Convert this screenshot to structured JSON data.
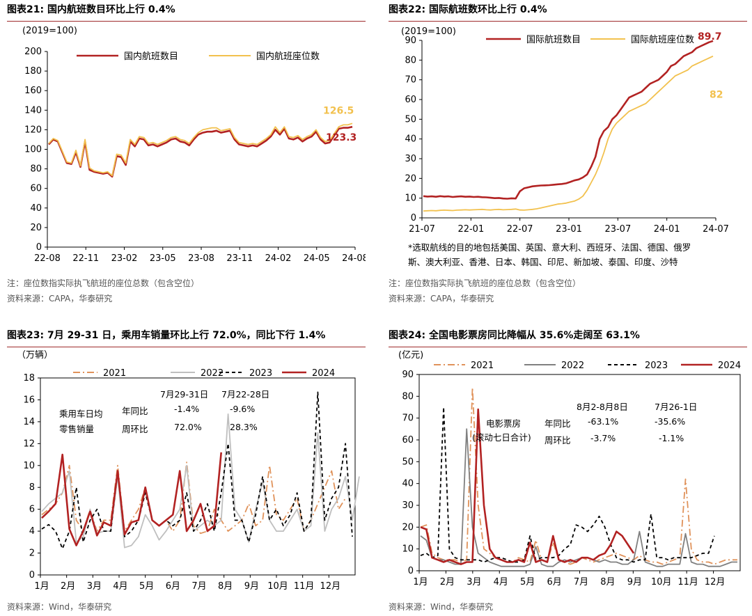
{
  "panels": {
    "p21": {
      "title": "图表21:  国内航班数目环比上行 0.4%",
      "note1": "注：座位数指实际执飞航班的座位总数（包含空位）",
      "note2": "资料来源：CAPA，华泰研究"
    },
    "p22": {
      "title": "图表22:  国际航班数环比上行 0.4%",
      "footnote1": "*选取航线的目的地包括美国、英国、意大利、西班牙、法国、德国、俄罗",
      "footnote2": "斯、澳大利亚、香港、日本、韩国、印尼、新加坡、泰国、印度、沙特",
      "note1": "注：座位数指实际执飞航班的座位总数（包含空位）",
      "note2": "资料来源：CAPA，华泰研究"
    },
    "p23": {
      "title": "图表23:  7月 29-31 日，乘用车销量环比上行 72.0%，同比下行 1.4%",
      "note1": "资料来源：Wind，华泰研究",
      "table": {
        "col1": "7月29-31日",
        "col2": "7月22-28日",
        "label1": "乘用车日均",
        "label2": "零售销量",
        "row1": "年同比",
        "row2": "周环比",
        "v11": "-1.4%",
        "v12": "-9.6%",
        "v21": "72.0%",
        "v22": "28.3%"
      }
    },
    "p24": {
      "title": "图表24:  全国电影票房同比降幅从 35.6%走阔至 63.1%",
      "note1": "资料来源：Wind，华泰研究",
      "table": {
        "col1": "8月2-8月8日",
        "col2": "7月26-1日",
        "label1": "电影票房",
        "label2": "(滚动七日合计)",
        "row1": "年同比",
        "row2": "周环比",
        "v11": "-63.1%",
        "v12": "-35.6%",
        "v21": "-3.7%",
        "v22": "-1.1%"
      }
    }
  },
  "colors": {
    "red": "#b22222",
    "gold": "#f2c14e",
    "orange": "#e0925a",
    "gray": "#bfbfbf",
    "darkgray": "#808080",
    "black": "#000000"
  },
  "chart_data": [
    {
      "id": "c21",
      "type": "line",
      "unit": "(2019=100)",
      "ylim": [
        0,
        200
      ],
      "yticks": [
        0,
        20,
        40,
        60,
        80,
        100,
        120,
        140,
        160,
        180,
        200
      ],
      "xticks": [
        "22-08",
        "22-11",
        "23-02",
        "23-05",
        "23-08",
        "23-11",
        "24-02",
        "24-05",
        "24-08"
      ],
      "end_labels": [
        "126.5",
        "123.3"
      ],
      "series": [
        {
          "name": "国内航班数目",
          "color": "#b22222",
          "values": [
            105,
            110,
            108,
            97,
            86,
            85,
            97,
            82,
            108,
            79,
            77,
            76,
            75,
            76,
            72,
            93,
            92,
            84,
            108,
            103,
            111,
            110,
            104,
            105,
            103,
            105,
            107,
            110,
            111,
            108,
            107,
            104,
            110,
            115,
            117,
            118,
            118,
            119,
            117,
            118,
            119,
            110,
            105,
            104,
            103,
            104,
            103,
            106,
            109,
            113,
            120,
            115,
            121,
            111,
            110,
            112,
            108,
            111,
            113,
            118,
            110,
            106,
            107,
            114,
            121,
            122,
            122,
            123
          ]
        },
        {
          "name": "国内航班座位数",
          "color": "#f2c14e",
          "values": [
            106,
            111,
            109,
            98,
            87,
            86,
            99,
            83,
            110,
            81,
            78,
            77,
            76,
            77,
            73,
            95,
            94,
            86,
            110,
            105,
            113,
            112,
            106,
            107,
            105,
            107,
            109,
            112,
            113,
            110,
            109,
            106,
            112,
            117,
            120,
            121,
            122,
            122,
            119,
            120,
            121,
            112,
            107,
            106,
            105,
            106,
            105,
            108,
            111,
            115,
            123,
            117,
            123,
            113,
            112,
            114,
            110,
            113,
            115,
            120,
            112,
            108,
            109,
            116,
            123,
            125,
            125,
            126.5
          ]
        }
      ]
    },
    {
      "id": "c22",
      "type": "line",
      "unit": "(2019=100)",
      "ylim": [
        0,
        90
      ],
      "yticks": [
        0,
        10,
        20,
        30,
        40,
        50,
        60,
        70,
        80,
        90
      ],
      "xticks": [
        "21-07",
        "22-01",
        "22-07",
        "23-01",
        "23-07",
        "24-01",
        "24-07"
      ],
      "end_labels": [
        "89.7",
        "82"
      ],
      "series": [
        {
          "name": "国际航班数目",
          "color": "#b22222",
          "values": [
            11,
            10.8,
            10.9,
            10.7,
            11,
            10.8,
            10.9,
            10.6,
            10.8,
            10.9,
            10.7,
            10.8,
            10.6,
            10.7,
            10.5,
            10.4,
            10.2,
            10,
            10.1,
            9.8,
            9.7,
            9.9,
            9.8,
            13.5,
            15,
            15.5,
            16,
            16.2,
            16.4,
            16.5,
            16.6,
            16.8,
            17,
            17.2,
            17.5,
            18.2,
            19,
            19.5,
            20.5,
            22,
            26,
            31,
            40,
            44,
            46,
            50,
            52,
            55,
            58,
            61,
            62,
            63,
            64,
            66,
            68,
            69,
            70,
            72,
            74,
            77,
            78,
            80,
            82,
            83,
            84,
            86,
            87,
            88,
            89,
            89.7
          ]
        },
        {
          "name": "国际航班座位数",
          "color": "#f2c14e",
          "values": [
            3.5,
            3.6,
            3.7,
            3.6,
            3.8,
            3.9,
            3.8,
            3.7,
            3.9,
            4,
            4.1,
            4,
            4.1,
            4.2,
            4.3,
            4.1,
            4,
            4.2,
            4.3,
            4.1,
            4.2,
            4.3,
            4.5,
            4,
            3.9,
            4.1,
            4.3,
            4.6,
            5,
            5.5,
            6,
            6.5,
            7,
            7.2,
            7.5,
            8,
            8.5,
            9.5,
            11,
            14,
            18,
            22,
            27,
            33,
            40,
            45,
            48,
            50,
            52,
            54,
            55,
            56,
            57,
            58,
            60,
            62,
            64,
            66,
            68,
            70,
            72,
            73,
            74,
            75,
            77,
            78,
            79,
            80,
            81,
            82
          ]
        }
      ]
    },
    {
      "id": "c23",
      "type": "line",
      "unit": "（万辆）",
      "ylim": [
        0,
        18
      ],
      "yticks": [
        0,
        2,
        4,
        6,
        8,
        10,
        12,
        14,
        16,
        18
      ],
      "xticks": [
        "1月",
        "2月",
        "3月",
        "4月",
        "5月",
        "6月",
        "7月",
        "8月",
        "9月",
        "10月",
        "11月",
        "12月"
      ],
      "series": [
        {
          "name": "2021",
          "color": "#e0925a",
          "dash": "10,4,2,4",
          "values": [
            5.5,
            6,
            6.5,
            7.5,
            10,
            5,
            4,
            6,
            4,
            5,
            5,
            10,
            4,
            5,
            6,
            8,
            5,
            4.5,
            5,
            4,
            5,
            10.3,
            4.5,
            3.8,
            4,
            6,
            5,
            4,
            4.5,
            5,
            6.5,
            4.5,
            5,
            10,
            5.5,
            5,
            6,
            7,
            4,
            5,
            6.5,
            8,
            9.5,
            6,
            7
          ]
        },
        {
          "name": "2022",
          "color": "#bfbfbf",
          "dash": "",
          "values": [
            5.8,
            6.5,
            7,
            7.5,
            9.5,
            3,
            3.5,
            6,
            3.8,
            4,
            4,
            9,
            2.5,
            2.7,
            3.5,
            5.5,
            4.5,
            3.2,
            4,
            5,
            6,
            10,
            4,
            4.5,
            5,
            4.5,
            5,
            14.7,
            6,
            5,
            3,
            6,
            8.5,
            5,
            4,
            4,
            5,
            6,
            4,
            4.5,
            13,
            4,
            6,
            7,
            9,
            5,
            9
          ]
        },
        {
          "name": "2023",
          "color": "#000000",
          "dash": "5,4",
          "values": [
            4.2,
            4.6,
            4,
            2.4,
            4,
            8,
            3,
            5,
            6,
            4,
            4,
            9.5,
            3.5,
            4,
            5,
            7.5,
            5,
            4.5,
            5,
            4.5,
            5,
            7.5,
            4,
            5,
            6.5,
            4,
            7.5,
            12,
            5,
            5,
            3,
            5.5,
            9,
            5,
            6,
            4.5,
            5.5,
            7.5,
            4,
            5,
            16.7,
            5,
            7,
            8,
            12,
            3.5
          ]
        },
        {
          "name": "2024",
          "color": "#b22222",
          "dash": "",
          "values": [
            5.2,
            5.8,
            6.5,
            11,
            4.2,
            2.7,
            4,
            5.8,
            3.6,
            4.8,
            4.5,
            9.5,
            3.7,
            4.8,
            5,
            8,
            5,
            4.5,
            5,
            5.5,
            9.5,
            4,
            5,
            6.5,
            4,
            4.5,
            11.2
          ]
        }
      ]
    },
    {
      "id": "c24",
      "type": "line",
      "unit": "(亿元)",
      "ylim": [
        0,
        90
      ],
      "yticks": [
        0,
        10,
        20,
        30,
        40,
        50,
        60,
        70,
        80,
        90
      ],
      "xticks": [
        "1月",
        "2月",
        "3月",
        "4月",
        "5月",
        "6月",
        "7月",
        "8月",
        "9月",
        "10月",
        "11月",
        "12月"
      ],
      "series": [
        {
          "name": "2021",
          "color": "#e0925a",
          "dash": "10,4,2,4",
          "values": [
            20,
            21,
            8,
            6,
            5,
            5,
            5,
            4,
            5,
            84,
            30,
            10,
            8,
            6,
            5,
            4,
            4,
            6,
            5,
            4,
            14,
            5,
            4,
            13,
            5,
            4,
            3,
            4,
            6,
            5,
            4,
            5,
            6,
            7,
            8,
            7,
            6,
            5,
            7,
            5,
            4,
            4,
            3,
            4,
            5,
            6,
            42,
            10,
            5,
            4,
            4,
            3,
            4,
            5,
            5,
            5
          ]
        },
        {
          "name": "2022",
          "color": "#808080",
          "dash": "",
          "values": [
            16,
            14,
            6,
            5,
            5,
            4,
            3,
            3,
            65,
            20,
            8,
            6,
            4,
            3,
            2,
            2,
            2,
            2,
            2,
            3,
            11,
            3,
            2,
            2,
            4,
            5,
            4,
            5,
            6,
            6,
            5,
            4,
            5,
            4,
            4,
            3,
            3,
            5,
            18,
            4,
            3,
            2,
            2,
            3,
            3,
            3,
            17,
            4,
            3,
            3,
            2,
            2,
            2,
            3,
            4,
            4
          ]
        },
        {
          "name": "2023",
          "color": "#000000",
          "dash": "5,4",
          "values": [
            7,
            8,
            6,
            7,
            75,
            10,
            6,
            5,
            5,
            5,
            5,
            4,
            5,
            6,
            6,
            5,
            4,
            4,
            5,
            16,
            5,
            6,
            6,
            6,
            7,
            10,
            12,
            21,
            20,
            18,
            21,
            25,
            20,
            12,
            6,
            5,
            5,
            4,
            5,
            5,
            26,
            6,
            6,
            5,
            6,
            6,
            6,
            6,
            7,
            8,
            8,
            16
          ]
        },
        {
          "name": "2024",
          "color": "#b22222",
          "dash": "",
          "values": [
            20,
            19,
            6,
            5,
            4,
            5,
            4,
            3,
            4,
            4,
            74,
            30,
            10,
            6,
            5,
            4,
            4,
            5,
            4,
            13,
            4,
            5,
            4,
            16,
            5,
            4,
            5,
            4,
            6,
            6,
            5,
            7,
            8,
            12,
            18,
            16,
            12,
            8
          ]
        }
      ]
    }
  ]
}
